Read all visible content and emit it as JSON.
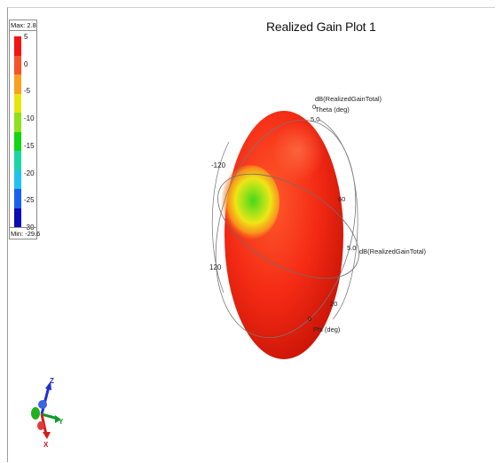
{
  "title": "Realized Gain Plot 1",
  "legend": {
    "max_label": "Max: 2.8",
    "min_label": "Min: -29.6",
    "ticks": [
      "5",
      "0",
      "-5",
      "-10",
      "-15",
      "-20",
      "-25",
      "-30"
    ],
    "colors": [
      "#f41414",
      "#f7522a",
      "#f9a11e",
      "#e6e60f",
      "#8fe01e",
      "#11d611",
      "#1ad6a6",
      "#22c2ee",
      "#1a5ff0",
      "#0b0bb7"
    ]
  },
  "plot": {
    "theta_axis_label": "dB(RealizedGainTotal)",
    "theta_label": "Theta (deg)",
    "phi_axis_label": "dB(RealizedGainTotal)",
    "phi_label": "Phi (deg)",
    "labels": {
      "top_5": "5.0",
      "top_0": "0",
      "left_m120": "-120",
      "left_120": "120",
      "right_60": "60",
      "right_5": "5.0",
      "right_20": "20",
      "bottom_0": "0"
    }
  },
  "axes_triad": {
    "z": "Z",
    "y": "Y",
    "x": "X"
  }
}
